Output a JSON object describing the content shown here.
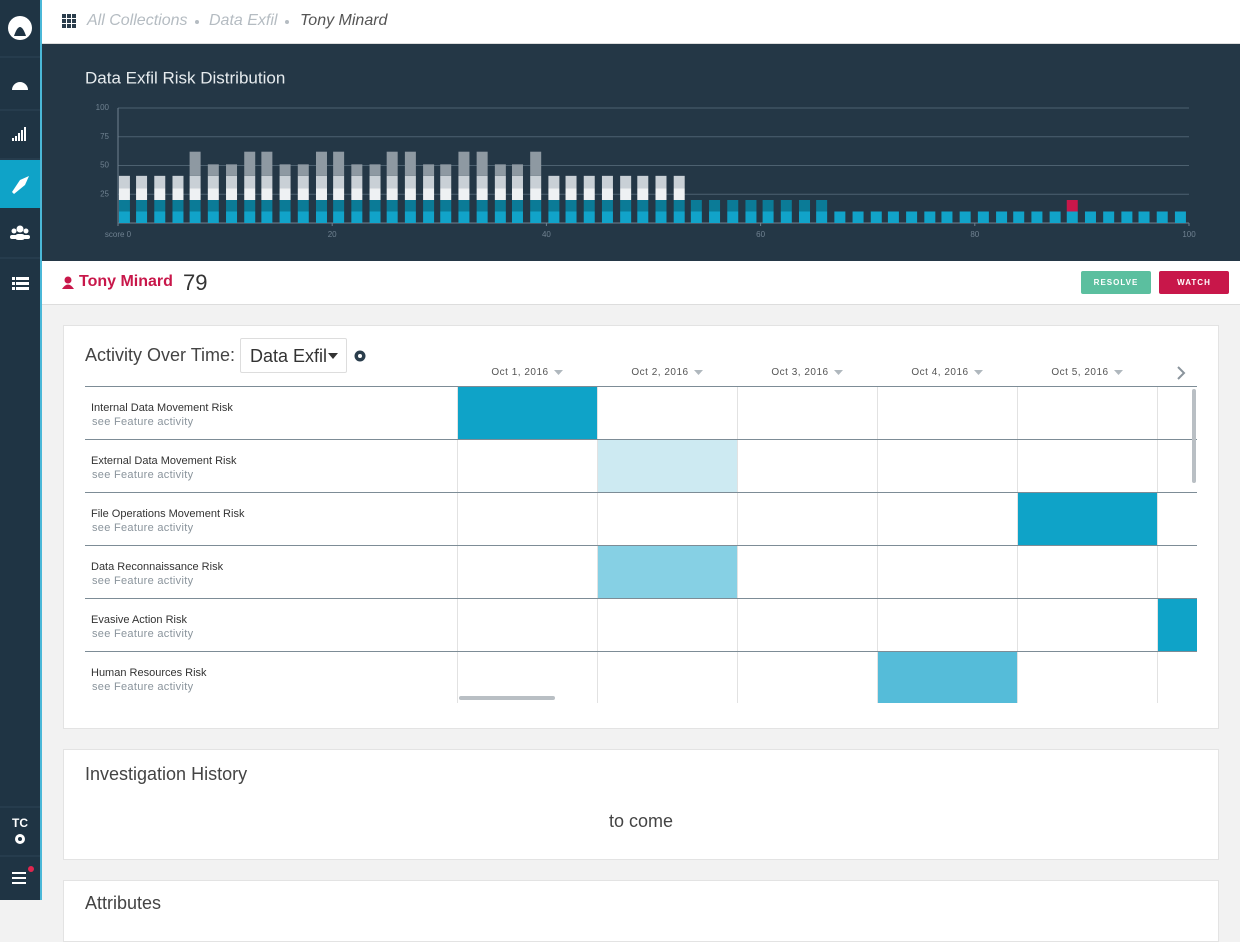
{
  "breadcrumb": {
    "items": [
      "All Collections",
      "Data Exfil",
      "Tony Minard"
    ]
  },
  "sidebar": {
    "user_initials": "TC"
  },
  "chart_data": {
    "type": "bar",
    "stacked": true,
    "title": "Data Exfil Risk Distribution",
    "x": [
      0.6,
      2.2,
      3.9,
      5.6,
      7.2,
      8.9,
      10.6,
      12.3,
      13.9,
      15.6,
      17.3,
      19,
      20.6,
      22.3,
      24,
      25.6,
      27.3,
      29,
      30.6,
      32.3,
      34,
      35.7,
      37.3,
      39,
      40.7,
      42.3,
      44,
      45.7,
      47.4,
      49,
      50.7,
      52.4,
      54,
      55.7,
      57.4,
      59.1,
      60.7,
      62.4,
      64.1,
      65.7,
      67.4,
      69.1,
      70.8,
      72.4,
      74.1,
      75.8,
      77.4,
      79.1,
      80.8,
      82.5,
      84.1,
      85.8,
      87.5,
      89.1,
      90.8,
      92.5,
      94.2,
      95.8,
      97.5,
      99.2
    ],
    "xlim": [
      0,
      100
    ],
    "xticks": [
      {
        "value": 0,
        "label": "score 0"
      },
      20,
      40,
      60,
      80,
      100
    ],
    "ylim": [
      0,
      100
    ],
    "yticks": [
      25,
      50,
      75,
      100
    ],
    "grid": true,
    "series": [
      {
        "color": "#11a3c9",
        "values": [
          10,
          10,
          10,
          10,
          10,
          10,
          10,
          10,
          10,
          10,
          10,
          10,
          10,
          10,
          10,
          10,
          10,
          10,
          10,
          10,
          10,
          10,
          10,
          10,
          10,
          10,
          10,
          10,
          10,
          10,
          10,
          10,
          10,
          10,
          10,
          10,
          10,
          10,
          10,
          10,
          10,
          10,
          10,
          10,
          10,
          10,
          10,
          10,
          10,
          10,
          10,
          10,
          10,
          10,
          10,
          10,
          10,
          10,
          10,
          10
        ]
      },
      {
        "color": "#0b7b97",
        "values": [
          10,
          10,
          10,
          10,
          10,
          10,
          10,
          10,
          10,
          10,
          10,
          10,
          10,
          10,
          10,
          10,
          10,
          10,
          10,
          10,
          10,
          10,
          10,
          10,
          10,
          10,
          10,
          10,
          10,
          10,
          10,
          10,
          10,
          10,
          10,
          10,
          10,
          10,
          10,
          10,
          0,
          0,
          0,
          0,
          0,
          0,
          0,
          0,
          0,
          0,
          0,
          0,
          0,
          0,
          0,
          0,
          0,
          0,
          0,
          0
        ]
      },
      {
        "color": "#c8174a",
        "values": [
          0,
          0,
          0,
          0,
          0,
          0,
          0,
          0,
          0,
          0,
          0,
          0,
          0,
          0,
          0,
          0,
          0,
          0,
          0,
          0,
          0,
          0,
          0,
          0,
          0,
          0,
          0,
          0,
          0,
          0,
          0,
          0,
          0,
          0,
          0,
          0,
          0,
          0,
          0,
          0,
          0,
          0,
          0,
          0,
          0,
          0,
          0,
          0,
          0,
          0,
          0,
          0,
          0,
          10,
          0,
          0,
          0,
          0,
          0,
          0
        ]
      },
      {
        "color": "#eef1f3",
        "values": [
          10,
          10,
          10,
          10,
          10,
          10,
          10,
          10,
          10,
          10,
          10,
          10,
          10,
          10,
          10,
          10,
          10,
          10,
          10,
          10,
          10,
          10,
          10,
          10,
          10,
          10,
          10,
          10,
          10,
          10,
          10,
          10,
          0,
          0,
          0,
          0,
          0,
          0,
          0,
          0,
          0,
          0,
          0,
          0,
          0,
          0,
          0,
          0,
          0,
          0,
          0,
          0,
          0,
          0,
          0,
          0,
          0,
          0,
          0,
          0
        ]
      },
      {
        "color": "#c9d0d6",
        "values": [
          11,
          11,
          11,
          11,
          11,
          11,
          11,
          11,
          11,
          11,
          11,
          11,
          11,
          11,
          11,
          11,
          11,
          11,
          11,
          11,
          11,
          11,
          11,
          11,
          11,
          11,
          11,
          11,
          11,
          11,
          11,
          11,
          0,
          0,
          0,
          0,
          0,
          0,
          0,
          0,
          0,
          0,
          0,
          0,
          0,
          0,
          0,
          0,
          0,
          0,
          0,
          0,
          0,
          0,
          0,
          0,
          0,
          0,
          0,
          0
        ]
      },
      {
        "color": "#8e99a2",
        "values": [
          0,
          0,
          0,
          0,
          21,
          10,
          10,
          21,
          21,
          10,
          10,
          21,
          21,
          10,
          10,
          21,
          21,
          10,
          10,
          21,
          21,
          10,
          10,
          21,
          0,
          0,
          0,
          0,
          0,
          0,
          0,
          0,
          0,
          0,
          0,
          0,
          0,
          0,
          0,
          0,
          0,
          0,
          0,
          0,
          0,
          0,
          0,
          0,
          0,
          0,
          0,
          0,
          0,
          0,
          0,
          0,
          0,
          0,
          0,
          0
        ]
      }
    ]
  },
  "user": {
    "name": "Tony Minard",
    "score": 79
  },
  "actions": [
    "RESOLVE",
    "WATCH"
  ],
  "activity": {
    "title": "Activity Over Time:",
    "filter": "Data Exfil",
    "columns": [
      "Oct 1, 2016",
      "Oct 2, 2016",
      "Oct 3, 2016",
      "Oct 4, 2016",
      "Oct 5, 2016",
      null
    ],
    "rows": [
      {
        "label": "Internal Data Movement Risk",
        "link": "see Feature activity",
        "cells": [
          "#0fa3c8",
          null,
          null,
          null,
          null,
          null
        ]
      },
      {
        "label": "External Data Movement Risk",
        "link": "see Feature activity",
        "cells": [
          null,
          "#cdeaf2",
          null,
          null,
          null,
          null
        ]
      },
      {
        "label": "File Operations Movement Risk",
        "link": "see Feature activity",
        "cells": [
          null,
          null,
          null,
          null,
          "#0fa3c8",
          null
        ]
      },
      {
        "label": "Data Reconnaissance Risk",
        "link": "see Feature activity",
        "cells": [
          null,
          "#86d0e4",
          null,
          null,
          null,
          null
        ]
      },
      {
        "label": "Evasive Action Risk",
        "link": "see Feature activity",
        "cells": [
          null,
          null,
          null,
          null,
          null,
          "#0fa3c8"
        ]
      },
      {
        "label": "Human Resources Risk",
        "link": "see Feature activity",
        "cells": [
          null,
          null,
          null,
          "#55bcd9",
          null,
          null
        ]
      }
    ]
  },
  "investigation_history": {
    "title": "Investigation History",
    "body": "to come"
  },
  "attributes": {
    "title": "Attributes"
  }
}
